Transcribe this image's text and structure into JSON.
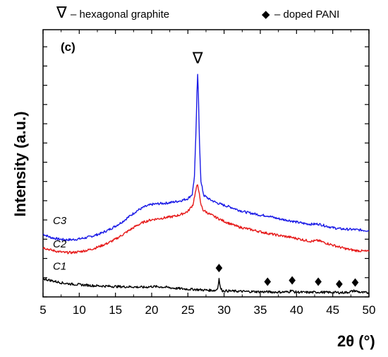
{
  "chart_data": {
    "type": "line",
    "xlabel_main": "2",
    "xlabel_symbol": "θ",
    "xlabel_unit": " (°)",
    "ylabel": "Intensity (a.u.)",
    "panel_label": "(c)",
    "xlim": [
      5,
      50
    ],
    "ylim": [
      0,
      100
    ],
    "x_ticks": [
      5,
      10,
      15,
      20,
      25,
      30,
      35,
      40,
      45,
      50
    ],
    "x_tick_labels": [
      "5",
      "10",
      "15",
      "20",
      "25",
      "30",
      "35",
      "40",
      "45",
      "50"
    ],
    "y_ticks": [
      0,
      7.2,
      14.4,
      21.6,
      28.8,
      36,
      43.2,
      50.4,
      57.6,
      64.8,
      72,
      79.2,
      86.4,
      93.6
    ],
    "legend": {
      "graphite_symbol": "∇",
      "graphite_text": "– hexagonal graphite",
      "pani_symbol": "◆",
      "pani_text": "– doped PANI"
    },
    "series": [
      {
        "name": "C3",
        "color": "#1a1ae6",
        "points": [
          [
            5,
            23.5
          ],
          [
            6,
            22.3
          ],
          [
            7,
            21.7
          ],
          [
            8,
            21.4
          ],
          [
            9,
            21.4
          ],
          [
            10,
            21.7
          ],
          [
            11,
            22.2
          ],
          [
            12,
            22.9
          ],
          [
            13,
            23.8
          ],
          [
            14,
            25
          ],
          [
            15,
            26.5
          ],
          [
            16,
            28.2
          ],
          [
            17,
            30.3
          ],
          [
            18,
            32.3
          ],
          [
            19,
            33.7
          ],
          [
            20,
            34.6
          ],
          [
            21,
            34.9
          ],
          [
            22,
            35.1
          ],
          [
            23,
            35.5
          ],
          [
            24,
            36
          ],
          [
            25,
            36.8
          ],
          [
            25.6,
            38.4
          ],
          [
            25.9,
            45
          ],
          [
            26.1,
            60
          ],
          [
            26.25,
            76
          ],
          [
            26.35,
            83
          ],
          [
            26.45,
            76
          ],
          [
            26.6,
            58
          ],
          [
            26.8,
            43
          ],
          [
            27.2,
            38
          ],
          [
            28,
            36.5
          ],
          [
            29,
            35.2
          ],
          [
            30,
            34.3
          ],
          [
            31,
            33.5
          ],
          [
            32,
            32.5
          ],
          [
            33,
            31.7
          ],
          [
            34,
            31.2
          ],
          [
            35,
            30.6
          ],
          [
            36,
            30.4
          ],
          [
            37,
            29.6
          ],
          [
            38,
            29
          ],
          [
            39,
            28.6
          ],
          [
            40,
            28
          ],
          [
            41,
            27.5
          ],
          [
            42,
            27.2
          ],
          [
            43,
            27.3
          ],
          [
            44,
            26.6
          ],
          [
            45,
            25.9
          ],
          [
            46,
            25.5
          ],
          [
            47,
            25.3
          ],
          [
            48,
            25.2
          ],
          [
            49,
            25
          ],
          [
            50,
            24.8
          ]
        ]
      },
      {
        "name": "C2",
        "color": "#e61a1a",
        "points": [
          [
            5,
            18.5
          ],
          [
            6,
            17.6
          ],
          [
            7,
            17
          ],
          [
            8,
            16.6
          ],
          [
            9,
            16.6
          ],
          [
            10,
            16.9
          ],
          [
            11,
            17.4
          ],
          [
            12,
            18.1
          ],
          [
            13,
            19.1
          ],
          [
            14,
            20.2
          ],
          [
            15,
            21.6
          ],
          [
            16,
            23.3
          ],
          [
            17,
            25.1
          ],
          [
            18,
            26.8
          ],
          [
            19,
            28.1
          ],
          [
            20,
            28.9
          ],
          [
            21,
            29.3
          ],
          [
            22,
            29.7
          ],
          [
            23,
            30.1
          ],
          [
            24,
            30.8
          ],
          [
            25,
            32
          ],
          [
            25.7,
            34.5
          ],
          [
            25.95,
            38
          ],
          [
            26.2,
            41
          ],
          [
            26.35,
            42
          ],
          [
            26.5,
            40
          ],
          [
            26.75,
            35
          ],
          [
            27.1,
            32.5
          ],
          [
            28,
            31
          ],
          [
            29,
            29.6
          ],
          [
            30,
            28.3
          ],
          [
            31,
            27.2
          ],
          [
            32,
            26.2
          ],
          [
            33,
            25.6
          ],
          [
            34,
            25
          ],
          [
            35,
            24.4
          ],
          [
            36,
            23.8
          ],
          [
            37,
            23.3
          ],
          [
            38,
            22.8
          ],
          [
            39,
            22.4
          ],
          [
            40,
            21.9
          ],
          [
            41,
            21.3
          ],
          [
            42,
            20.8
          ],
          [
            43,
            21.1
          ],
          [
            44,
            20.2
          ],
          [
            45,
            19.4
          ],
          [
            46,
            18.6
          ],
          [
            47,
            17.9
          ],
          [
            48,
            17.4
          ],
          [
            49,
            17.2
          ],
          [
            50,
            17
          ]
        ]
      },
      {
        "name": "C1",
        "color": "#000000",
        "points": [
          [
            5,
            6.8
          ],
          [
            6,
            6.2
          ],
          [
            7,
            5.6
          ],
          [
            8,
            5.1
          ],
          [
            9,
            4.8
          ],
          [
            10,
            4.6
          ],
          [
            11,
            4.4
          ],
          [
            12,
            4.2
          ],
          [
            13,
            4.1
          ],
          [
            14,
            4
          ],
          [
            15,
            3.9
          ],
          [
            16,
            3.8
          ],
          [
            17,
            3.8
          ],
          [
            18,
            3.7
          ],
          [
            19,
            3.6
          ],
          [
            20,
            3.9
          ],
          [
            21,
            3.8
          ],
          [
            22,
            3.6
          ],
          [
            23,
            3.3
          ],
          [
            24,
            3.1
          ],
          [
            25,
            2.9
          ],
          [
            26,
            2.8
          ],
          [
            27,
            2.6
          ],
          [
            28,
            2.5
          ],
          [
            28.8,
            2.4
          ],
          [
            29.1,
            3.2
          ],
          [
            29.3,
            6.8
          ],
          [
            29.5,
            3.2
          ],
          [
            29.8,
            2.3
          ],
          [
            31,
            2.2
          ],
          [
            32,
            2.1
          ],
          [
            33,
            2
          ],
          [
            34,
            2
          ],
          [
            35,
            1.9
          ],
          [
            36,
            1.9
          ],
          [
            37,
            1.8
          ],
          [
            38,
            1.8
          ],
          [
            39,
            1.9
          ],
          [
            39.3,
            2.6
          ],
          [
            39.6,
            1.9
          ],
          [
            40,
            1.8
          ],
          [
            41,
            1.7
          ],
          [
            42,
            1.7
          ],
          [
            43,
            1.8
          ],
          [
            44,
            1.7
          ],
          [
            45,
            1.7
          ],
          [
            46,
            1.6
          ],
          [
            47,
            1.7
          ],
          [
            48,
            2.3
          ],
          [
            49,
            1.6
          ],
          [
            50,
            1.6
          ]
        ]
      }
    ],
    "graphite_peak": {
      "x": 26.35,
      "y": 87.5,
      "symbol": "∇"
    },
    "pani_markers": [
      {
        "x": 29.3,
        "y": 10.8
      },
      {
        "x": 36.0,
        "y": 5.7
      },
      {
        "x": 39.4,
        "y": 6.2
      },
      {
        "x": 43.0,
        "y": 5.7
      },
      {
        "x": 45.9,
        "y": 4.8
      },
      {
        "x": 48.1,
        "y": 5.4
      }
    ],
    "series_labels": [
      {
        "text": "C3",
        "x": 7.3,
        "y": 27.2
      },
      {
        "text": "C2",
        "x": 7.3,
        "y": 18.5
      },
      {
        "text": "C1",
        "x": 7.3,
        "y": 10.2
      }
    ]
  }
}
